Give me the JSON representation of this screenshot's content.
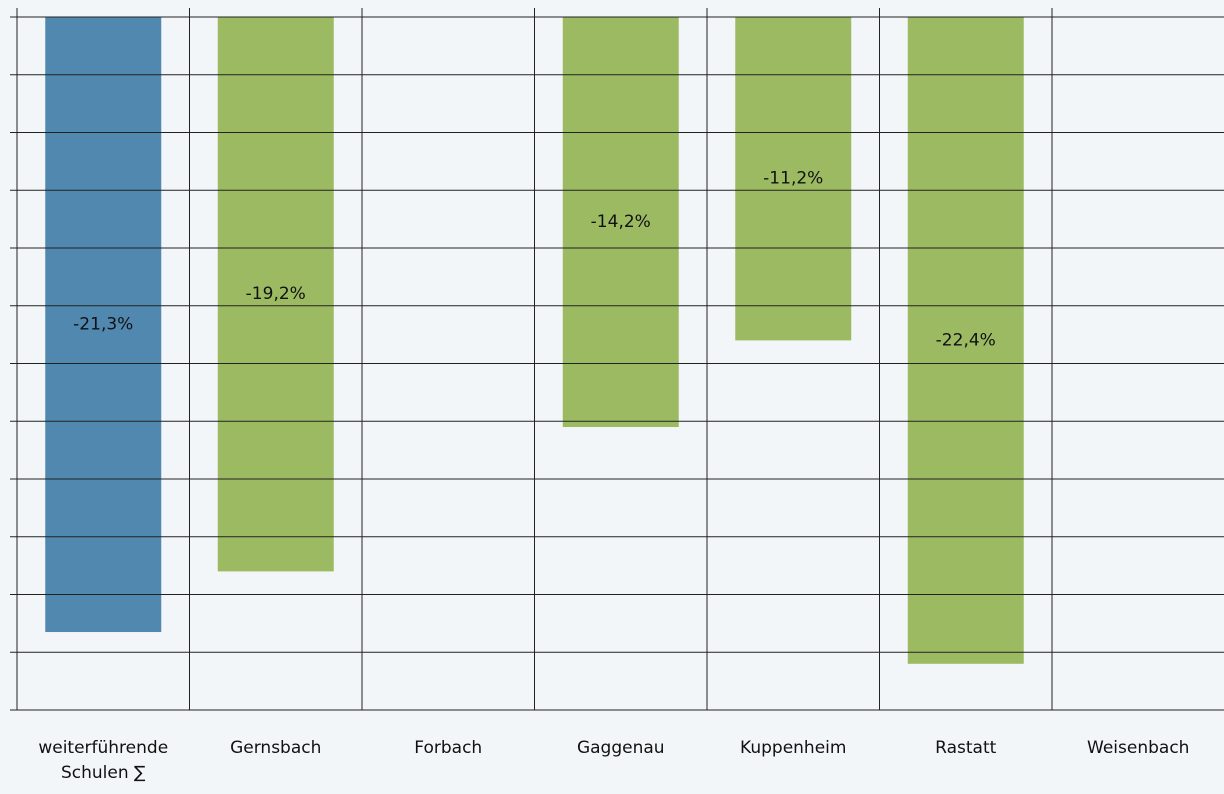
{
  "chart_data": {
    "type": "bar",
    "categories": [
      "weiterführende Schulen ∑",
      "Gernsbach",
      "Forbach",
      "Gaggenau",
      "Kuppenheim",
      "Rastatt",
      "Weisenbach"
    ],
    "values": [
      -21.3,
      -19.2,
      null,
      -14.2,
      -11.2,
      -22.4,
      null
    ],
    "value_labels": [
      "-21,3%",
      "-19,2%",
      null,
      "-14,2%",
      "-11,2%",
      "-22,4%",
      null
    ],
    "colors": [
      "#5088b0",
      "#9cba62",
      "#9cba62",
      "#9cba62",
      "#9cba62",
      "#9cba62",
      "#9cba62"
    ],
    "ylim": [
      -24,
      0
    ],
    "yticks": [
      0,
      -2,
      -4,
      -6,
      -8,
      -10,
      -12,
      -14,
      -16,
      -18,
      -20,
      -22,
      -24
    ],
    "grid": true
  }
}
